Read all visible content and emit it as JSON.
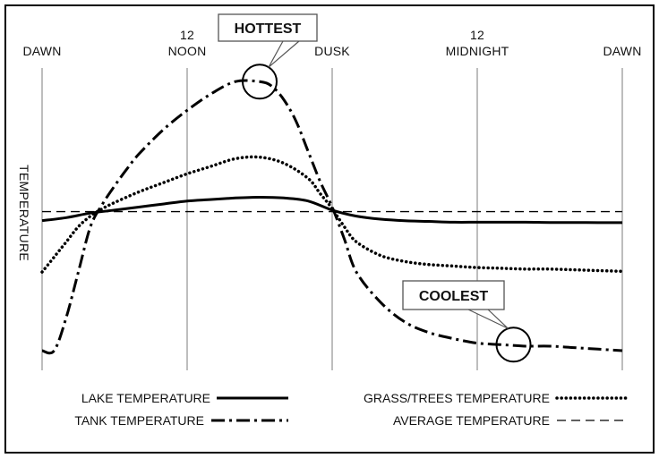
{
  "chart_data": {
    "type": "line",
    "title": "",
    "xlabel": "",
    "ylabel": "TEMPERATURE",
    "x_ticks": [
      {
        "x": 0,
        "lines": [
          "DAWN"
        ]
      },
      {
        "x": 6,
        "lines": [
          "12",
          "NOON"
        ]
      },
      {
        "x": 12,
        "lines": [
          "DUSK"
        ]
      },
      {
        "x": 18,
        "lines": [
          "12",
          "MIDNIGHT"
        ]
      },
      {
        "x": 24,
        "lines": [
          "DAWN"
        ]
      }
    ],
    "xlim": [
      0,
      24
    ],
    "ylim": [
      -1.05,
      0.95
    ],
    "grid": "vertical",
    "legend": "bottom",
    "series": [
      {
        "name": "LAKE TEMPERATURE",
        "style": "solid",
        "x": [
          0,
          1,
          2,
          3,
          4,
          5,
          6,
          7,
          8,
          9,
          10,
          11,
          12,
          13,
          14,
          15,
          16,
          17,
          18,
          19,
          20,
          21,
          22,
          23,
          24
        ],
        "y": [
          -0.06,
          -0.04,
          -0.01,
          0.01,
          0.03,
          0.05,
          0.07,
          0.08,
          0.09,
          0.095,
          0.09,
          0.07,
          0.01,
          -0.03,
          -0.05,
          -0.06,
          -0.065,
          -0.07,
          -0.07,
          -0.07,
          -0.07,
          -0.072,
          -0.072,
          -0.073,
          -0.073
        ]
      },
      {
        "name": "TANK TEMPERATURE",
        "style": "dashdot",
        "x": [
          0,
          0.5,
          1,
          1.5,
          2,
          2.5,
          3,
          3.5,
          4,
          5,
          6,
          7,
          8,
          9,
          9.5,
          10,
          10.5,
          11,
          11.5,
          12,
          12.5,
          13,
          14,
          15,
          16,
          17,
          18,
          19,
          20,
          21,
          22,
          23,
          24
        ],
        "y": [
          -0.92,
          -0.92,
          -0.7,
          -0.4,
          -0.1,
          0.05,
          0.17,
          0.28,
          0.38,
          0.54,
          0.67,
          0.78,
          0.86,
          0.86,
          0.83,
          0.74,
          0.6,
          0.4,
          0.2,
          0.03,
          -0.18,
          -0.4,
          -0.6,
          -0.73,
          -0.8,
          -0.84,
          -0.87,
          -0.88,
          -0.89,
          -0.89,
          -0.9,
          -0.91,
          -0.92
        ]
      },
      {
        "name": "GRASS/TREES TEMPERATURE",
        "style": "dotted",
        "x": [
          0,
          0.5,
          1,
          1.5,
          2,
          2.5,
          3,
          4,
          5,
          6,
          7,
          8,
          9,
          10,
          11,
          11.5,
          12,
          12.5,
          13,
          14,
          15,
          16,
          17,
          18,
          19,
          20,
          21,
          22,
          23,
          24
        ],
        "y": [
          -0.4,
          -0.3,
          -0.2,
          -0.1,
          -0.03,
          0.02,
          0.06,
          0.13,
          0.19,
          0.25,
          0.3,
          0.35,
          0.36,
          0.32,
          0.22,
          0.12,
          0.02,
          -0.1,
          -0.2,
          -0.29,
          -0.33,
          -0.35,
          -0.36,
          -0.37,
          -0.375,
          -0.38,
          -0.38,
          -0.385,
          -0.39,
          -0.395
        ]
      },
      {
        "name": "AVERAGE TEMPERATURE",
        "style": "dashed",
        "x": [
          0,
          24
        ],
        "y": [
          0,
          0
        ]
      }
    ],
    "annotations": [
      {
        "text": "HOTTEST",
        "target_x": 9,
        "target_y": 0.86
      },
      {
        "text": "COOLEST",
        "target_x": 19.5,
        "target_y": -0.88
      }
    ]
  }
}
